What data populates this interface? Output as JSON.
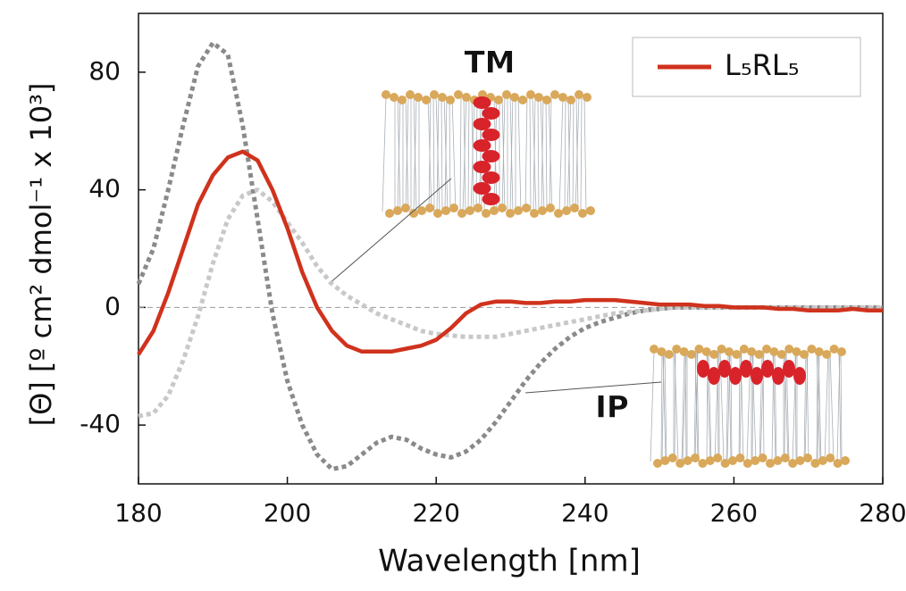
{
  "chart_data": {
    "type": "line",
    "xlabel": "Wavelength [nm]",
    "ylabel": "[Θ] [º cm² dmol⁻¹ x 10³]",
    "x": [
      180,
      182,
      184,
      186,
      188,
      190,
      192,
      194,
      196,
      198,
      200,
      202,
      204,
      206,
      208,
      210,
      212,
      214,
      216,
      218,
      220,
      222,
      224,
      226,
      228,
      230,
      232,
      234,
      236,
      238,
      240,
      242,
      244,
      246,
      248,
      250,
      252,
      254,
      256,
      258,
      260,
      262,
      264,
      266,
      268,
      270,
      272,
      274,
      276,
      278,
      280
    ],
    "series": [
      {
        "name": "L₅RL₅",
        "color": "#d0321d",
        "dashed": false,
        "in_legend": true,
        "values": [
          -16,
          -8,
          5,
          20,
          35,
          45,
          51,
          53,
          50,
          40,
          27,
          12,
          0,
          -8,
          -13,
          -15,
          -15,
          -15,
          -14,
          -13,
          -11,
          -7,
          -2,
          1,
          2,
          2,
          1.5,
          1.5,
          2,
          2,
          2.5,
          2.5,
          2.5,
          2,
          1.5,
          1,
          1,
          1,
          0.5,
          0.5,
          0,
          0,
          0,
          -0.5,
          -0.5,
          -1,
          -1,
          -1,
          -0.5,
          -1,
          -1
        ]
      },
      {
        "name": "TM",
        "color": "#c8c8c8",
        "dashed": true,
        "in_legend": false,
        "values": [
          -37,
          -36,
          -30,
          -18,
          -3,
          15,
          30,
          38,
          40,
          36,
          29,
          22,
          14,
          8,
          4,
          1,
          -2,
          -4,
          -6,
          -8,
          -9,
          -9.5,
          -10,
          -10,
          -10,
          -9,
          -8,
          -7,
          -6,
          -5,
          -4,
          -3,
          -2,
          -1.5,
          -1,
          -0.5,
          0,
          0,
          0,
          0,
          0,
          0,
          0,
          0,
          0,
          0,
          0,
          0,
          0,
          0,
          0
        ]
      },
      {
        "name": "IP",
        "color": "#8a8a8a",
        "dashed": true,
        "in_legend": false,
        "values": [
          8,
          20,
          40,
          62,
          82,
          90,
          86,
          62,
          30,
          -2,
          -25,
          -40,
          -50,
          -55,
          -54,
          -50,
          -46,
          -44,
          -45,
          -48,
          -50,
          -51,
          -49,
          -45,
          -39,
          -32,
          -25,
          -19,
          -14,
          -10,
          -7,
          -5,
          -3.5,
          -2,
          -1,
          -0.5,
          0,
          0,
          0,
          0,
          0,
          0,
          0,
          0,
          0,
          0,
          0,
          0,
          0,
          0,
          0
        ]
      }
    ],
    "xlim": [
      180,
      280
    ],
    "xticks": [
      180,
      200,
      220,
      240,
      260,
      280
    ],
    "ylim": [
      -60,
      100
    ],
    "yticks": [
      -40,
      0,
      40,
      80
    ],
    "zero_line": true,
    "grid": false,
    "legend": "upper right"
  }
}
